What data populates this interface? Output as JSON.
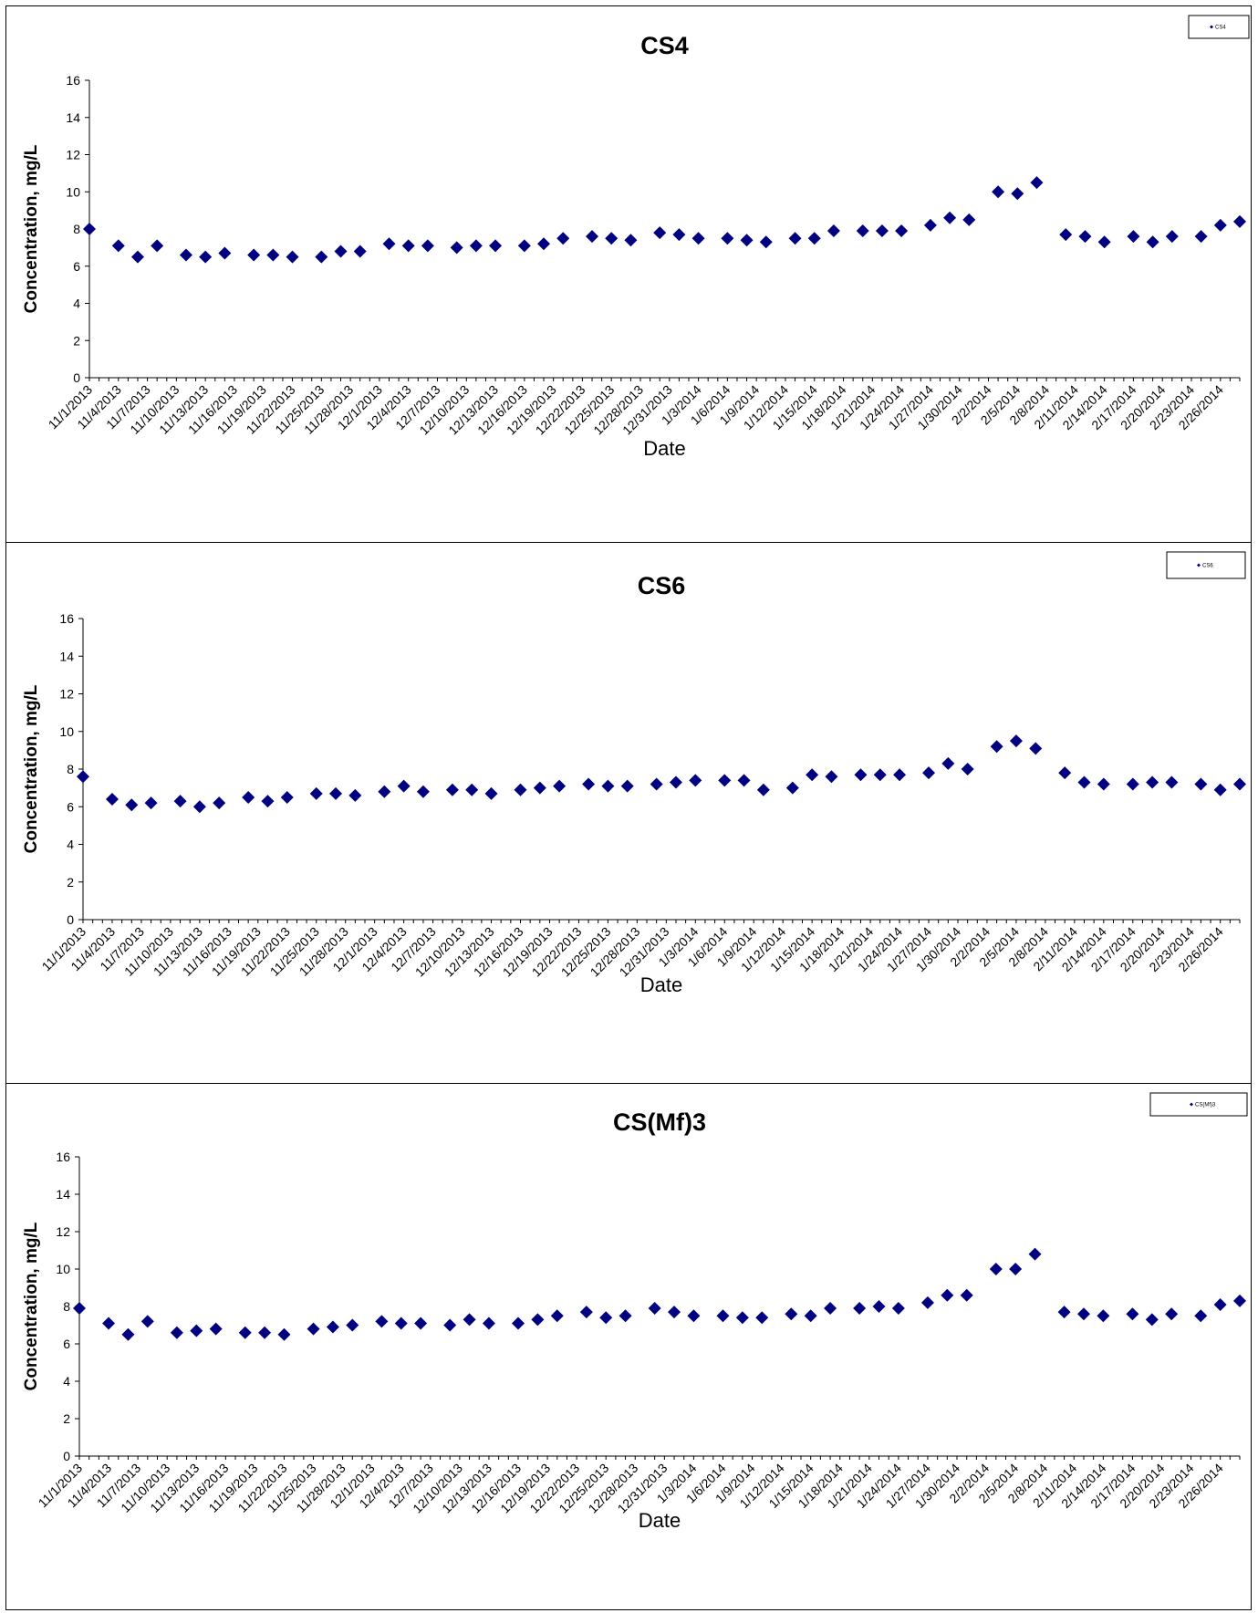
{
  "marker_color": "#000080",
  "chart_data": [
    {
      "type": "scatter",
      "title": "CS4",
      "xlabel": "Date",
      "ylabel": "Concentration, mg/L",
      "ylim": [
        0,
        16
      ],
      "yticks": [
        0,
        2,
        4,
        6,
        8,
        10,
        12,
        14,
        16
      ],
      "xlim": [
        "11/1/2013",
        "2/28/2014"
      ],
      "xticks": [
        "11/1/2013",
        "11/4/2013",
        "11/7/2013",
        "11/10/2013",
        "11/13/2013",
        "11/16/2013",
        "11/19/2013",
        "11/22/2013",
        "11/25/2013",
        "11/28/2013",
        "12/1/2013",
        "12/4/2013",
        "12/7/2013",
        "12/10/2013",
        "12/13/2013",
        "12/16/2013",
        "12/19/2013",
        "12/22/2013",
        "12/25/2013",
        "12/28/2013",
        "12/31/2013",
        "1/3/2014",
        "1/6/2014",
        "1/9/2014",
        "1/12/2014",
        "1/15/2014",
        "1/18/2014",
        "1/21/2014",
        "1/24/2014",
        "1/27/2014",
        "1/30/2014",
        "2/2/2014",
        "2/5/2014",
        "2/8/2014",
        "2/11/2014",
        "2/14/2014",
        "2/17/2014",
        "2/20/2014",
        "2/23/2014",
        "2/26/2014"
      ],
      "grid": false,
      "legend_position": "top-right",
      "series": [
        {
          "name": "CS4",
          "x": [
            "11/1/2013",
            "11/4/2013",
            "11/6/2013",
            "11/8/2013",
            "11/11/2013",
            "11/13/2013",
            "11/15/2013",
            "11/18/2013",
            "11/20/2013",
            "11/22/2013",
            "11/25/2013",
            "11/27/2013",
            "11/29/2013",
            "12/2/2013",
            "12/4/2013",
            "12/6/2013",
            "12/9/2013",
            "12/11/2013",
            "12/13/2013",
            "12/16/2013",
            "12/18/2013",
            "12/20/2013",
            "12/23/2013",
            "12/25/2013",
            "12/27/2013",
            "12/30/2013",
            "1/1/2014",
            "1/3/2014",
            "1/6/2014",
            "1/8/2014",
            "1/10/2014",
            "1/13/2014",
            "1/15/2014",
            "1/17/2014",
            "1/20/2014",
            "1/22/2014",
            "1/24/2014",
            "1/27/2014",
            "1/29/2014",
            "1/31/2014",
            "2/3/2014",
            "2/5/2014",
            "2/7/2014",
            "2/10/2014",
            "2/12/2014",
            "2/14/2014",
            "2/17/2014",
            "2/19/2014",
            "2/21/2014",
            "2/24/2014",
            "2/26/2014",
            "2/28/2014"
          ],
          "y": [
            8.0,
            7.1,
            6.5,
            7.1,
            6.6,
            6.5,
            6.7,
            6.6,
            6.6,
            6.5,
            6.5,
            6.8,
            6.8,
            7.2,
            7.1,
            7.1,
            7.0,
            7.1,
            7.1,
            7.1,
            7.2,
            7.5,
            7.6,
            7.5,
            7.4,
            7.8,
            7.7,
            7.5,
            7.5,
            7.4,
            7.3,
            7.5,
            7.5,
            7.9,
            7.9,
            7.9,
            7.9,
            8.2,
            8.6,
            8.5,
            10.0,
            9.9,
            10.5,
            7.7,
            7.6,
            7.3,
            7.6,
            7.3,
            7.6,
            7.6,
            8.2,
            8.4
          ]
        }
      ]
    },
    {
      "type": "scatter",
      "title": "CS6",
      "xlabel": "Date",
      "ylabel": "Concentration, mg/L",
      "ylim": [
        0,
        16
      ],
      "yticks": [
        0,
        2,
        4,
        6,
        8,
        10,
        12,
        14,
        16
      ],
      "xlim": [
        "11/1/2013",
        "2/28/2014"
      ],
      "xticks": [
        "11/1/2013",
        "11/4/2013",
        "11/7/2013",
        "11/10/2013",
        "11/13/2013",
        "11/16/2013",
        "11/19/2013",
        "11/22/2013",
        "11/25/2013",
        "11/28/2013",
        "12/1/2013",
        "12/4/2013",
        "12/7/2013",
        "12/10/2013",
        "12/13/2013",
        "12/16/2013",
        "12/19/2013",
        "12/22/2013",
        "12/25/2013",
        "12/28/2013",
        "12/31/2013",
        "1/3/2014",
        "1/6/2014",
        "1/9/2014",
        "1/12/2014",
        "1/15/2014",
        "1/18/2014",
        "1/21/2014",
        "1/24/2014",
        "1/27/2014",
        "1/30/2014",
        "2/2/2014",
        "2/5/2014",
        "2/8/2014",
        "2/11/2014",
        "2/14/2014",
        "2/17/2014",
        "2/20/2014",
        "2/23/2014",
        "2/26/2014"
      ],
      "grid": false,
      "legend_position": "top-right",
      "series": [
        {
          "name": "CS6",
          "x": [
            "11/1/2013",
            "11/4/2013",
            "11/6/2013",
            "11/8/2013",
            "11/11/2013",
            "11/13/2013",
            "11/15/2013",
            "11/18/2013",
            "11/20/2013",
            "11/22/2013",
            "11/25/2013",
            "11/27/2013",
            "11/29/2013",
            "12/2/2013",
            "12/4/2013",
            "12/6/2013",
            "12/9/2013",
            "12/11/2013",
            "12/13/2013",
            "12/16/2013",
            "12/18/2013",
            "12/20/2013",
            "12/23/2013",
            "12/25/2013",
            "12/27/2013",
            "12/30/2013",
            "1/1/2014",
            "1/3/2014",
            "1/6/2014",
            "1/8/2014",
            "1/10/2014",
            "1/13/2014",
            "1/15/2014",
            "1/17/2014",
            "1/20/2014",
            "1/22/2014",
            "1/24/2014",
            "1/27/2014",
            "1/29/2014",
            "1/31/2014",
            "2/3/2014",
            "2/5/2014",
            "2/7/2014",
            "2/10/2014",
            "2/12/2014",
            "2/14/2014",
            "2/17/2014",
            "2/19/2014",
            "2/21/2014",
            "2/24/2014",
            "2/26/2014",
            "2/28/2014"
          ],
          "y": [
            7.6,
            6.4,
            6.1,
            6.2,
            6.3,
            6.0,
            6.2,
            6.5,
            6.3,
            6.5,
            6.7,
            6.7,
            6.6,
            6.8,
            7.1,
            6.8,
            6.9,
            6.9,
            6.7,
            6.9,
            7.0,
            7.1,
            7.2,
            7.1,
            7.1,
            7.2,
            7.3,
            7.4,
            7.4,
            7.4,
            6.9,
            7.0,
            7.7,
            7.6,
            7.7,
            7.7,
            7.7,
            7.8,
            8.3,
            8.0,
            9.2,
            9.5,
            9.1,
            7.8,
            7.3,
            7.2,
            7.2,
            7.3,
            7.3,
            7.2,
            6.9,
            7.2
          ]
        }
      ]
    },
    {
      "type": "scatter",
      "title": "CS(Mf)3",
      "xlabel": "Date",
      "ylabel": "Concentration, mg/L",
      "ylim": [
        0,
        16
      ],
      "yticks": [
        0,
        2,
        4,
        6,
        8,
        10,
        12,
        14,
        16
      ],
      "xlim": [
        "11/1/2013",
        "2/28/2014"
      ],
      "xticks": [
        "11/1/2013",
        "11/4/2013",
        "11/7/2013",
        "11/10/2013",
        "11/13/2013",
        "11/16/2013",
        "11/19/2013",
        "11/22/2013",
        "11/25/2013",
        "11/28/2013",
        "12/1/2013",
        "12/4/2013",
        "12/7/2013",
        "12/10/2013",
        "12/13/2013",
        "12/16/2013",
        "12/19/2013",
        "12/22/2013",
        "12/25/2013",
        "12/28/2013",
        "12/31/2013",
        "1/3/2014",
        "1/6/2014",
        "1/9/2014",
        "1/12/2014",
        "1/15/2014",
        "1/18/2014",
        "1/21/2014",
        "1/24/2014",
        "1/27/2014",
        "1/30/2014",
        "2/2/2014",
        "2/5/2014",
        "2/8/2014",
        "2/11/2014",
        "2/14/2014",
        "2/17/2014",
        "2/20/2014",
        "2/23/2014",
        "2/26/2014"
      ],
      "grid": false,
      "legend_position": "top-right",
      "series": [
        {
          "name": "CS(Mf)3",
          "x": [
            "11/1/2013",
            "11/4/2013",
            "11/6/2013",
            "11/8/2013",
            "11/11/2013",
            "11/13/2013",
            "11/15/2013",
            "11/18/2013",
            "11/20/2013",
            "11/22/2013",
            "11/25/2013",
            "11/27/2013",
            "11/29/2013",
            "12/2/2013",
            "12/4/2013",
            "12/6/2013",
            "12/9/2013",
            "12/11/2013",
            "12/13/2013",
            "12/16/2013",
            "12/18/2013",
            "12/20/2013",
            "12/23/2013",
            "12/25/2013",
            "12/27/2013",
            "12/30/2013",
            "1/1/2014",
            "1/3/2014",
            "1/6/2014",
            "1/8/2014",
            "1/10/2014",
            "1/13/2014",
            "1/15/2014",
            "1/17/2014",
            "1/20/2014",
            "1/22/2014",
            "1/24/2014",
            "1/27/2014",
            "1/29/2014",
            "1/31/2014",
            "2/3/2014",
            "2/5/2014",
            "2/7/2014",
            "2/10/2014",
            "2/12/2014",
            "2/14/2014",
            "2/17/2014",
            "2/19/2014",
            "2/21/2014",
            "2/24/2014",
            "2/26/2014",
            "2/28/2014"
          ],
          "y": [
            7.9,
            7.1,
            6.5,
            7.2,
            6.6,
            6.7,
            6.8,
            6.6,
            6.6,
            6.5,
            6.8,
            6.9,
            7.0,
            7.2,
            7.1,
            7.1,
            7.0,
            7.3,
            7.1,
            7.1,
            7.3,
            7.5,
            7.7,
            7.4,
            7.5,
            7.9,
            7.7,
            7.5,
            7.5,
            7.4,
            7.4,
            7.6,
            7.5,
            7.9,
            7.9,
            8.0,
            7.9,
            8.2,
            8.6,
            8.6,
            10.0,
            10.0,
            10.8,
            7.7,
            7.6,
            7.5,
            7.6,
            7.3,
            7.6,
            7.5,
            8.1,
            8.3
          ]
        }
      ]
    }
  ]
}
